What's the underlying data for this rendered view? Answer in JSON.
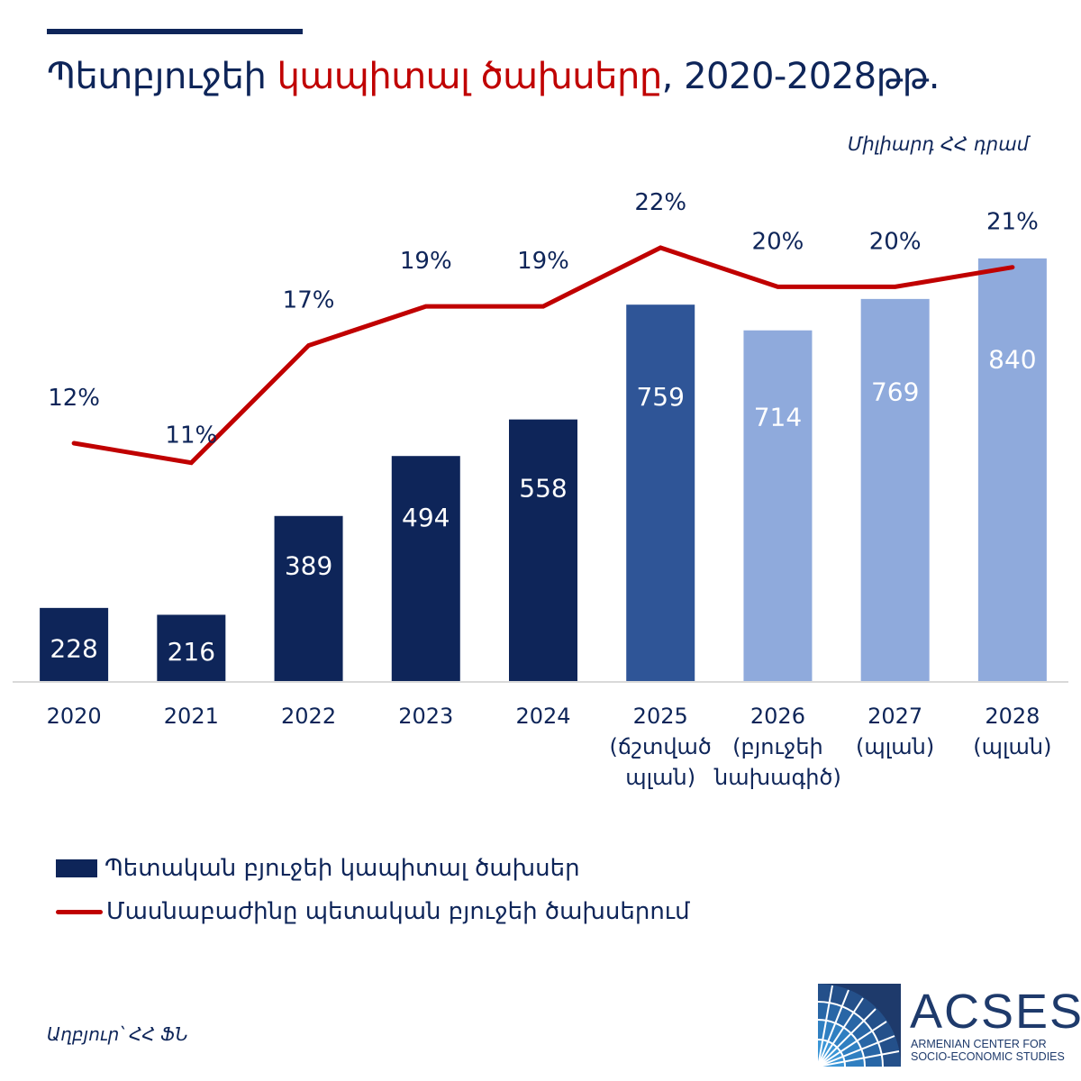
{
  "header": {
    "title_part1": "Պետբյուջեի ",
    "title_highlight": "կապիտալ ծախսերը",
    "title_part2": ", 2020-2028թթ.",
    "unit": "Միլիարդ ՀՀ դրամ"
  },
  "colors": {
    "navy": "#0e2559",
    "mid_blue": "#2f5597",
    "light_blue": "#8faadc",
    "red": "#c00000",
    "axis": "#d9d9d9"
  },
  "chart_data": {
    "type": "bar",
    "title": "Պետբյուջեի կապիտալ ծախսերը, 2020-2028թթ.",
    "ylabel": "Միլիարդ ՀՀ դրամ",
    "categories": [
      [
        "2020"
      ],
      [
        "2021"
      ],
      [
        "2022"
      ],
      [
        "2023"
      ],
      [
        "2024"
      ],
      [
        "2025",
        "(ճշտված",
        "պլան)"
      ],
      [
        "2026",
        "(բյուջեի",
        "նախագիծ)"
      ],
      [
        "2027",
        "(պլան)"
      ],
      [
        "2028",
        "(պլան)"
      ]
    ],
    "series": [
      {
        "name": "Պետական բյուջեի կապիտալ ծախսեր",
        "type": "bar",
        "values": [
          228,
          216,
          389,
          494,
          558,
          759,
          714,
          769,
          840
        ],
        "labels": [
          "228",
          "216",
          "389",
          "494",
          "558",
          "759",
          "714",
          "769",
          "840"
        ],
        "color_group": [
          "navy",
          "navy",
          "navy",
          "navy",
          "navy",
          "mid_blue",
          "light_blue",
          "light_blue",
          "light_blue"
        ]
      },
      {
        "name": "Մասնաբաժինը պետական բյուջեի ծախսերում",
        "type": "line",
        "values": [
          12,
          11,
          17,
          19,
          19,
          22,
          20,
          20,
          21
        ],
        "labels": [
          "12%",
          "11%",
          "17%",
          "19%",
          "19%",
          "22%",
          "20%",
          "20%",
          "21%"
        ]
      }
    ],
    "ylim": [
      100,
      900
    ],
    "y2lim": [
      0,
      30
    ],
    "grid": false,
    "legend_position": "bottom-left"
  },
  "legend": {
    "bar_label": "Պետական բյուջեի կապիտալ ծախսեր",
    "line_label": "Մասնաբաժինը պետական բյուջեի ծախսերում"
  },
  "footer": {
    "source": "Աղբյուր՝ ՀՀ ՖՆ",
    "logo_name": "ACSES",
    "logo_sub_1": "ARMENIAN CENTER FOR",
    "logo_sub_2": "SOCIO-ECONOMIC STUDIES"
  }
}
